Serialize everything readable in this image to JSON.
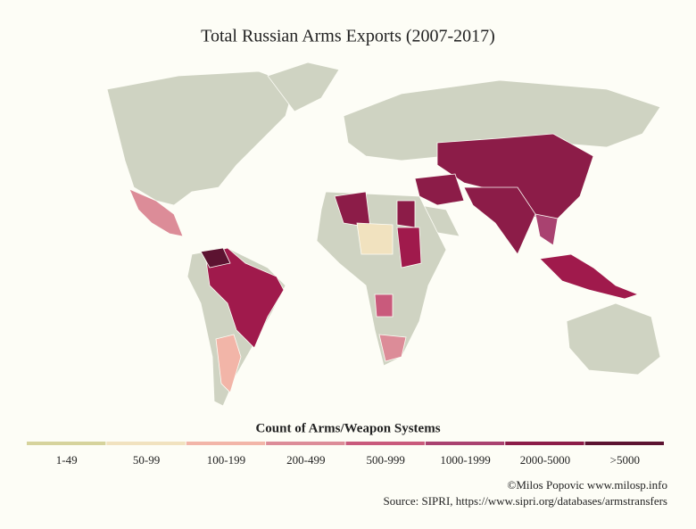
{
  "header": {
    "title": "Total Russian Arms Exports (2007-2017)"
  },
  "legend": {
    "title": "Count of Arms/Weapon Systems",
    "items": [
      {
        "label": "1-49",
        "color": "#d6d39c"
      },
      {
        "label": "50-99",
        "color": "#f1e2bf"
      },
      {
        "label": "100-199",
        "color": "#f2b5a8"
      },
      {
        "label": "200-499",
        "color": "#dc8c98"
      },
      {
        "label": "500-999",
        "color": "#c95a7c"
      },
      {
        "label": "1000-1999",
        "color": "#a94270"
      },
      {
        "label": "2000-5000",
        "color": "#8c1c48"
      },
      {
        "label": ">5000",
        "color": "#5c1331"
      }
    ]
  },
  "credits": {
    "author": "©Milos Popovic www.milosp.info",
    "source": "Source: SIPRI, https://www.sipri.org/databases/armstransfers"
  }
}
